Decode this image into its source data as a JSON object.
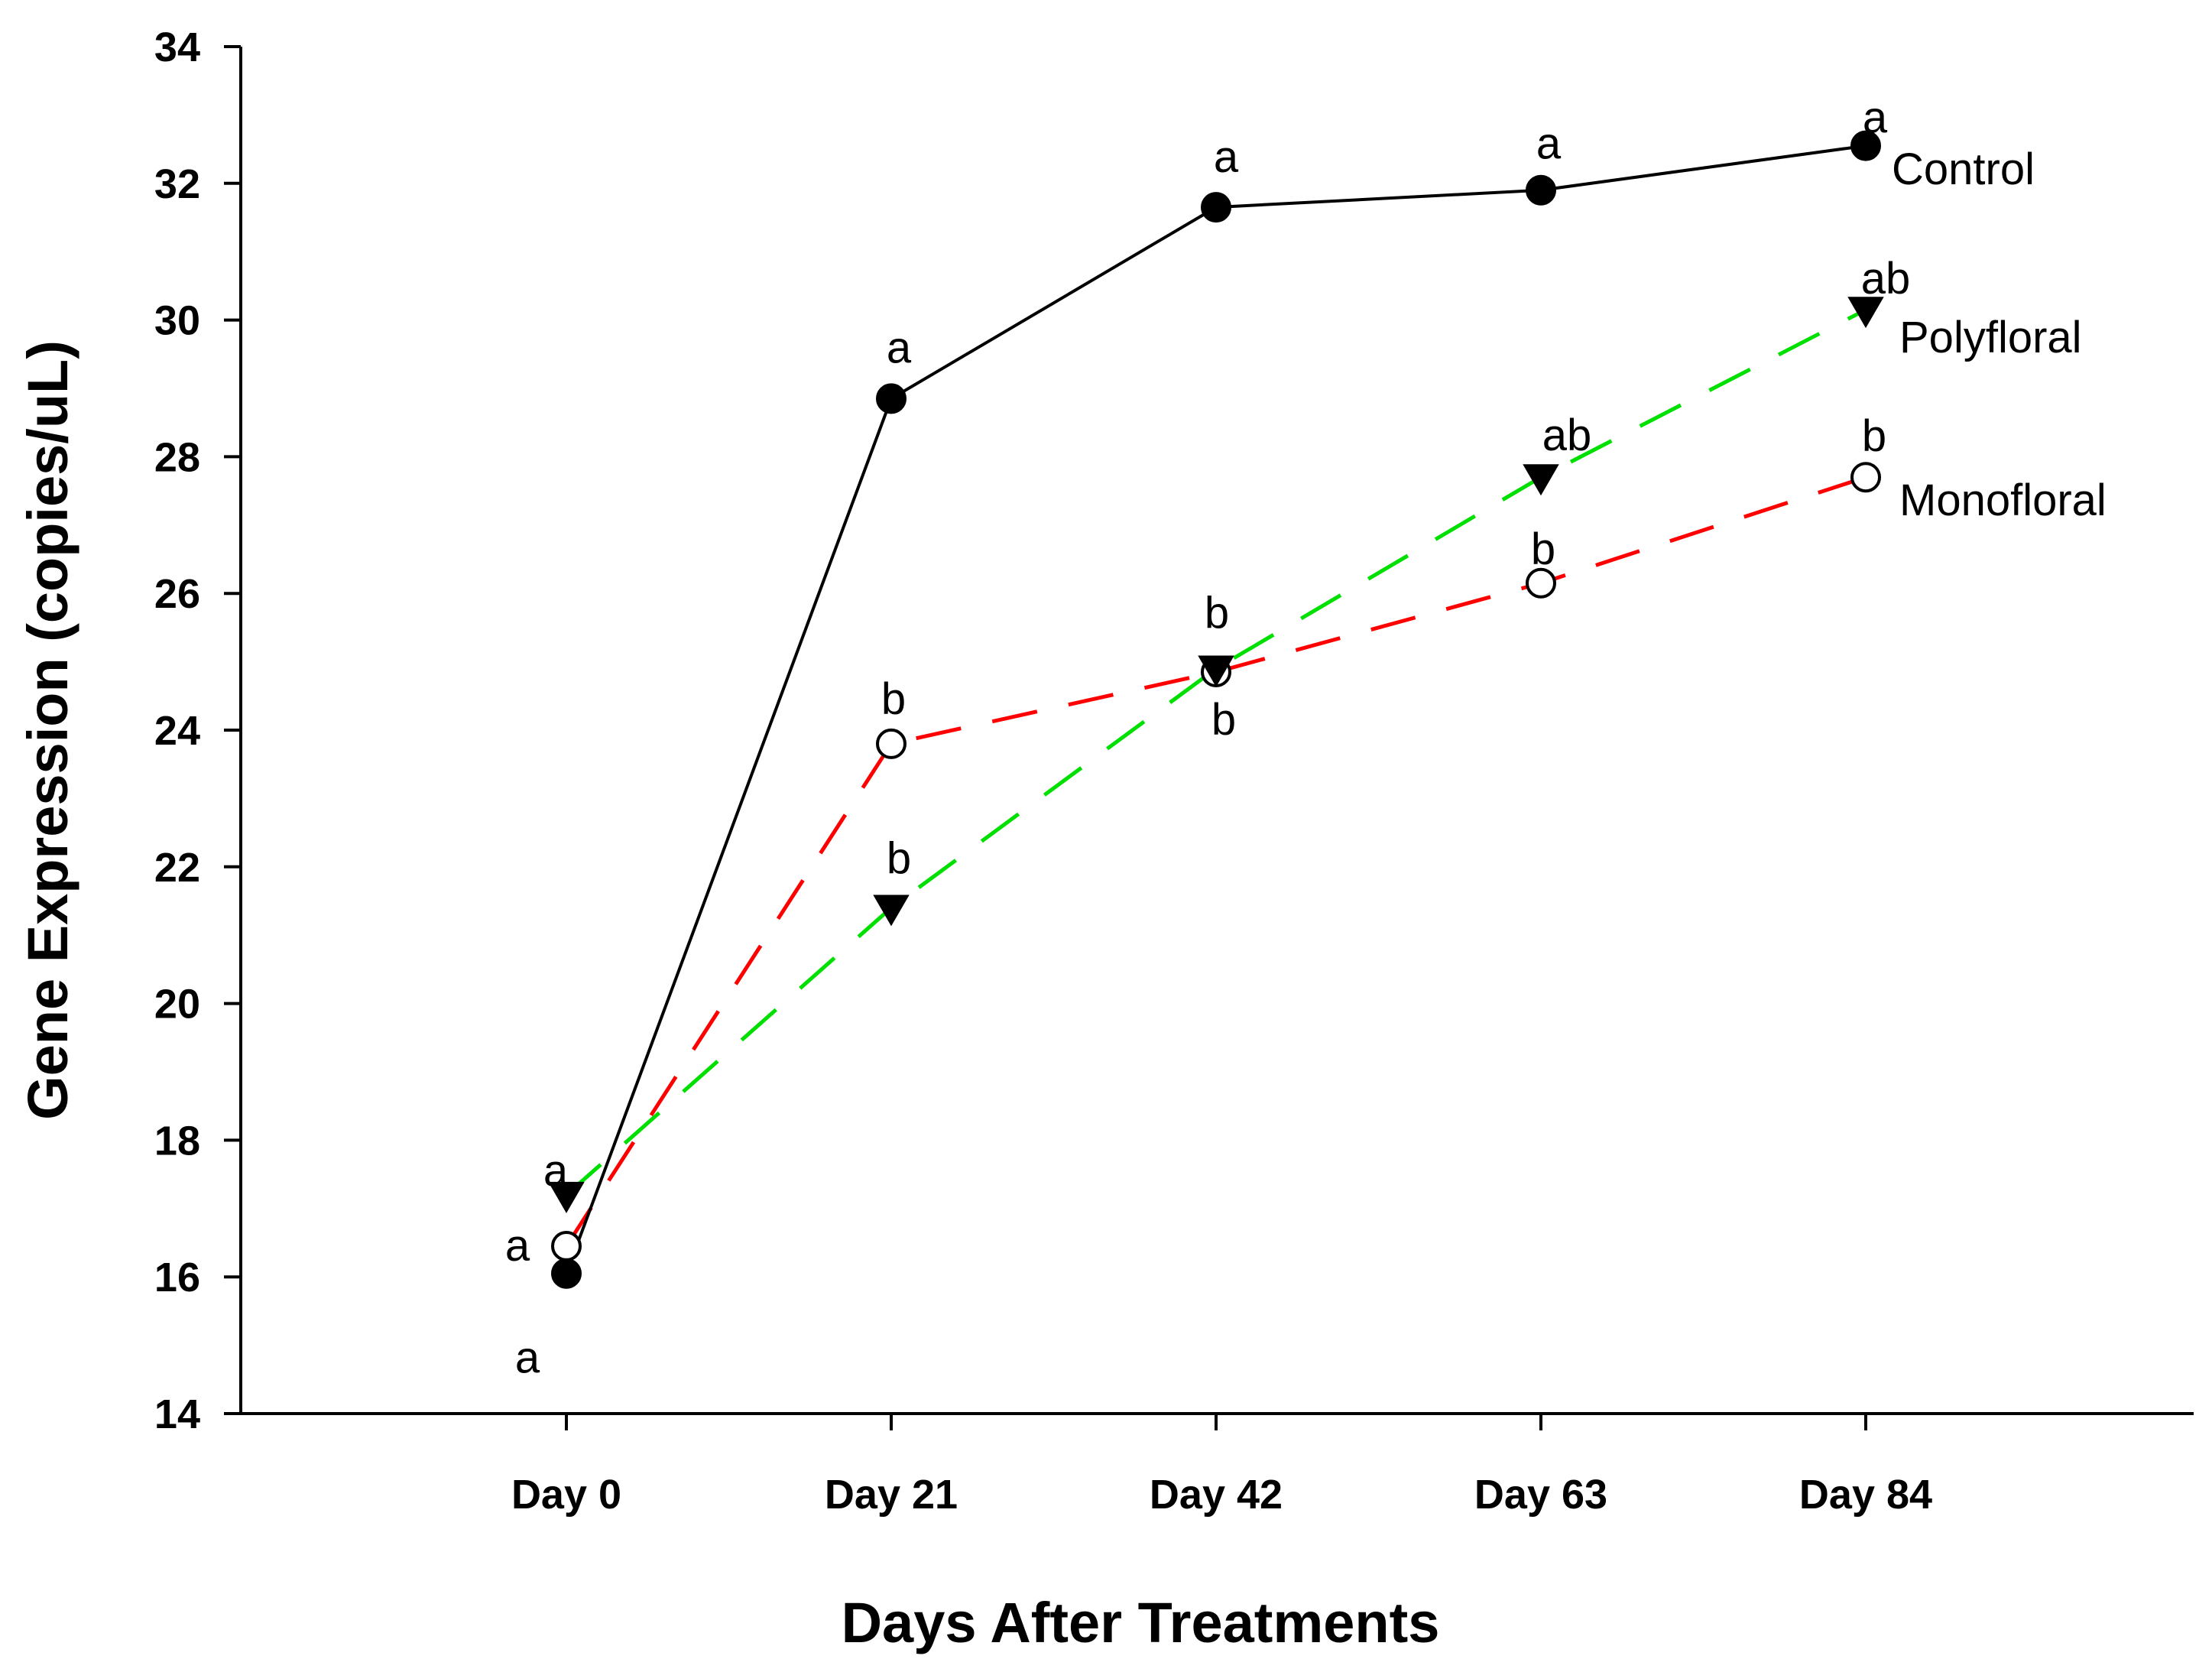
{
  "chart_data": {
    "type": "line",
    "title": "",
    "xlabel": "Days After Treatments",
    "ylabel": "Gene Expression (copies/uL)",
    "categories": [
      "Day 0",
      "Day 21",
      "Day 42",
      "Day 63",
      "Day 84"
    ],
    "ylim": [
      14,
      34
    ],
    "yticks": [
      14,
      16,
      18,
      20,
      22,
      24,
      26,
      28,
      30,
      32,
      34
    ],
    "grid": false,
    "series": [
      {
        "name": "Control",
        "color": "#000000",
        "line_style": "solid",
        "marker": "filled-circle",
        "values": [
          16.05,
          28.85,
          31.65,
          31.9,
          32.55
        ],
        "letters": [
          "a",
          "a",
          "a",
          "a",
          "a"
        ]
      },
      {
        "name": "Polyfloral",
        "color": "#00e000",
        "line_style": "dashed",
        "marker": "filled-triangle-down",
        "values": [
          17.2,
          21.4,
          24.9,
          27.7,
          30.15
        ],
        "letters": [
          "a",
          "b",
          "b",
          "ab",
          "ab"
        ]
      },
      {
        "name": "Monofloral",
        "color": "#ff0000",
        "line_style": "dashed",
        "marker": "open-circle",
        "values": [
          16.45,
          23.8,
          24.85,
          26.15,
          27.7
        ],
        "letters": [
          "a",
          "b",
          "b",
          "b",
          "b"
        ]
      }
    ]
  }
}
